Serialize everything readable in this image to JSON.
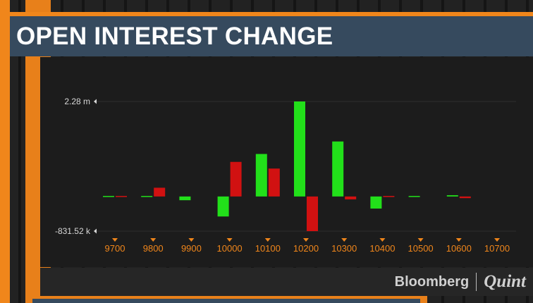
{
  "title": "OPEN INTEREST CHANGE",
  "watermark": {
    "brand": "Bloomberg",
    "partner": "Quint"
  },
  "colors": {
    "positive": "#22e01a",
    "negative": "#d11111",
    "accent": "#f0861b",
    "banner": "#364a5e"
  },
  "chart_data": {
    "type": "bar",
    "categories": [
      "9700",
      "9800",
      "9900",
      "10000",
      "10100",
      "10200",
      "10300",
      "10400",
      "10500",
      "10600",
      "10700"
    ],
    "series": [
      {
        "color": "#22e01a",
        "values": [
          20000,
          15000,
          -90000,
          -480000,
          1020000,
          2280000,
          1320000,
          -290000,
          15000,
          30000,
          0
        ]
      },
      {
        "color": "#d11111",
        "values": [
          15000,
          210000,
          0,
          830000,
          670000,
          -831520,
          -70000,
          15000,
          0,
          -40000,
          0
        ]
      }
    ],
    "y_tick_labels": [
      {
        "value": 2280000,
        "label": "2.28 m"
      },
      {
        "value": -831520,
        "label": "-831.52 k"
      }
    ],
    "ylim": [
      -831520,
      2280000
    ],
    "grid": true
  }
}
